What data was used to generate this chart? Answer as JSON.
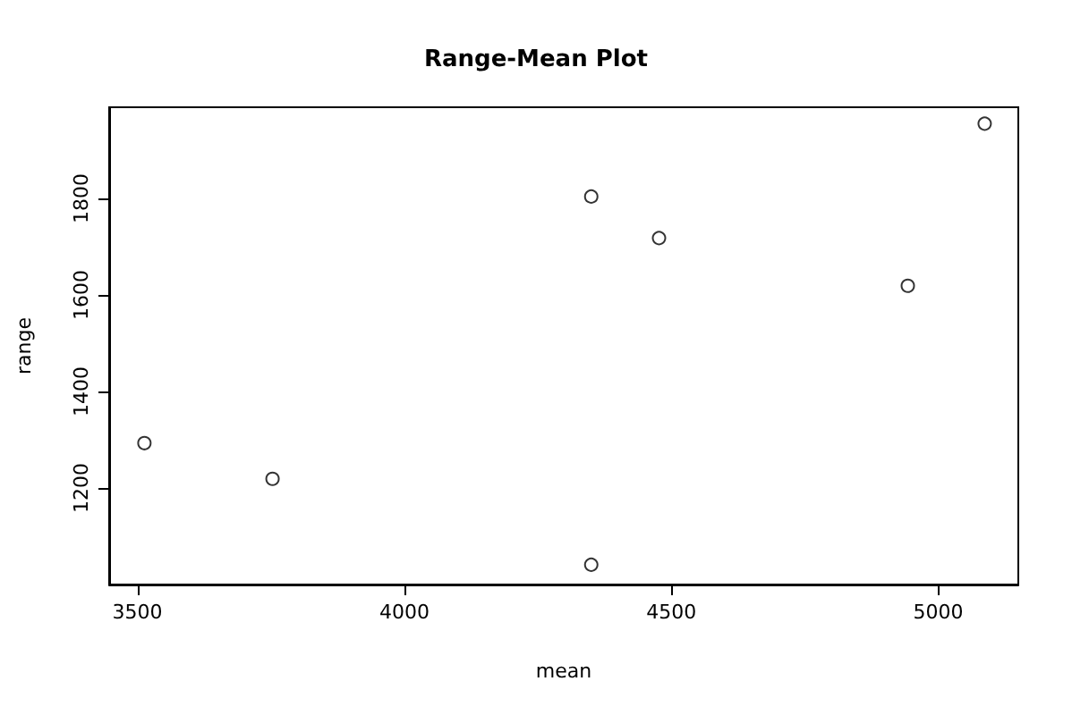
{
  "chart_data": {
    "type": "scatter",
    "title": "Range-Mean Plot",
    "xlabel": "mean",
    "ylabel": "range",
    "x": [
      3513,
      3753,
      4350,
      4350,
      4477,
      4943,
      5087
    ],
    "values": [
      1293,
      1219,
      1804,
      1041,
      1718,
      1619,
      1955
    ],
    "color": "#000000",
    "marker": "circle",
    "grid": false,
    "xlim": [
      3447,
      5150
    ],
    "xticks": [
      3500,
      4000,
      4500,
      5000
    ],
    "ylim": [
      1000,
      1989
    ],
    "yticks": [
      1200,
      1400,
      1600,
      1800
    ]
  }
}
